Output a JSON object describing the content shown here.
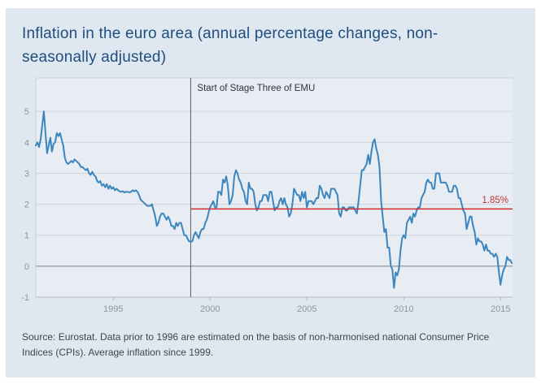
{
  "header": {
    "title": "Inflation in the euro area (annual percentage changes, non-seasonally adjusted)"
  },
  "footer": {
    "source": "Source: Eurostat. Data prior to 1996 are estimated on the basis of non-harmonised national Consumer Price Indices (CPIs). Average inflation since 1999."
  },
  "chart_data": {
    "type": "line",
    "title": "Inflation in the euro area (annual percentage changes, non-seasonally adjusted)",
    "xlabel": "",
    "ylabel": "",
    "xlim": [
      1991.0,
      2015.62
    ],
    "ylim": [
      -1,
      6.08
    ],
    "x_ticks": [
      1995,
      2000,
      2005,
      2010,
      2015
    ],
    "y_ticks": [
      5,
      4,
      3,
      2,
      1,
      0,
      -1
    ],
    "grid": true,
    "legend": "none",
    "series": [
      {
        "name": "Euro area inflation, annual percentage change",
        "frequency": "monthly",
        "start_year": 1991,
        "start_month": 1,
        "values": [
          3.9,
          4.0,
          3.85,
          4.1,
          4.55,
          5.0,
          4.3,
          3.65,
          3.9,
          4.15,
          3.7,
          3.95,
          4.0,
          4.3,
          4.2,
          4.3,
          4.1,
          3.9,
          3.5,
          3.35,
          3.3,
          3.35,
          3.4,
          3.35,
          3.45,
          3.4,
          3.35,
          3.3,
          3.2,
          3.2,
          3.15,
          3.1,
          3.15,
          3.0,
          2.95,
          3.05,
          2.95,
          2.9,
          2.75,
          2.7,
          2.75,
          2.6,
          2.65,
          2.55,
          2.65,
          2.5,
          2.6,
          2.5,
          2.55,
          2.45,
          2.5,
          2.45,
          2.42,
          2.4,
          2.42,
          2.38,
          2.4,
          2.4,
          2.38,
          2.4,
          2.45,
          2.42,
          2.45,
          2.4,
          2.3,
          2.15,
          2.1,
          2.05,
          2.0,
          1.95,
          1.95,
          1.95,
          2.0,
          1.8,
          1.6,
          1.3,
          1.4,
          1.6,
          1.7,
          1.7,
          1.6,
          1.5,
          1.6,
          1.5,
          1.3,
          1.3,
          1.2,
          1.4,
          1.3,
          1.4,
          1.4,
          1.2,
          1.0,
          1.0,
          0.9,
          0.8,
          0.8,
          0.8,
          1.0,
          1.1,
          1.0,
          0.9,
          1.1,
          1.2,
          1.2,
          1.4,
          1.5,
          1.7,
          1.9,
          2.0,
          2.1,
          1.9,
          1.9,
          2.4,
          2.4,
          2.3,
          2.8,
          2.7,
          2.9,
          2.6,
          2.0,
          2.1,
          2.3,
          2.9,
          3.1,
          3.0,
          2.8,
          2.7,
          2.5,
          2.4,
          2.1,
          2.0,
          2.7,
          2.5,
          2.5,
          2.4,
          2.0,
          1.8,
          1.9,
          2.1,
          2.1,
          2.3,
          2.3,
          2.3,
          2.1,
          2.4,
          2.4,
          2.1,
          1.8,
          1.9,
          1.9,
          2.1,
          2.2,
          2.0,
          2.2,
          2.0,
          1.9,
          1.6,
          1.7,
          2.0,
          2.5,
          2.4,
          2.3,
          2.3,
          2.1,
          2.4,
          2.2,
          2.4,
          1.9,
          2.1,
          2.1,
          2.1,
          2.0,
          2.1,
          2.2,
          2.2,
          2.6,
          2.5,
          2.3,
          2.2,
          2.4,
          2.3,
          2.2,
          2.5,
          2.5,
          2.5,
          2.4,
          2.3,
          1.7,
          1.6,
          1.9,
          1.9,
          1.8,
          1.8,
          1.9,
          1.9,
          1.9,
          1.9,
          1.8,
          1.7,
          2.1,
          2.6,
          3.1,
          3.1,
          3.2,
          3.3,
          3.6,
          3.3,
          3.7,
          4.0,
          4.1,
          3.8,
          3.6,
          3.2,
          2.1,
          1.6,
          1.1,
          1.2,
          0.6,
          0.6,
          0.0,
          -0.1,
          -0.7,
          -0.2,
          -0.3,
          -0.1,
          0.5,
          0.9,
          1.0,
          0.9,
          1.4,
          1.5,
          1.6,
          1.4,
          1.7,
          1.6,
          1.8,
          1.9,
          1.9,
          2.2,
          2.3,
          2.4,
          2.7,
          2.8,
          2.7,
          2.7,
          2.5,
          2.5,
          3.0,
          3.0,
          3.0,
          2.7,
          2.7,
          2.7,
          2.7,
          2.6,
          2.4,
          2.4,
          2.4,
          2.6,
          2.6,
          2.5,
          2.2,
          2.2,
          2.0,
          1.8,
          1.7,
          1.2,
          1.4,
          1.6,
          1.6,
          1.3,
          1.1,
          0.7,
          0.9,
          0.8,
          0.8,
          0.7,
          0.5,
          0.7,
          0.5,
          0.5,
          0.4,
          0.4,
          0.3,
          0.4,
          0.3,
          -0.2,
          -0.6,
          -0.3,
          -0.1,
          0.0,
          0.3,
          0.2,
          0.2,
          0.1
        ]
      }
    ],
    "annotations": {
      "emu_line": {
        "x": 1999.0,
        "label": "Start of Stage Three of EMU"
      },
      "average_line": {
        "y": 1.85,
        "x_start": 1999.0,
        "label": "1.85%"
      }
    },
    "colors": {
      "series": "#3c86c0",
      "average_line": "#cb2f2f",
      "average_label": "#c2333a",
      "grid": "#cfd7de",
      "zero_line": "#798088",
      "axis": "#b0b9c2",
      "plot_border": "#c8d1d9",
      "tick_label": "#8d959e",
      "emu_line": "#595d66",
      "emu_label": "#30343c",
      "plot_background": "#e7edf2",
      "panel_background": "#dfe8f0",
      "title": "#1e4d7f",
      "source_text": "#41454b"
    }
  }
}
